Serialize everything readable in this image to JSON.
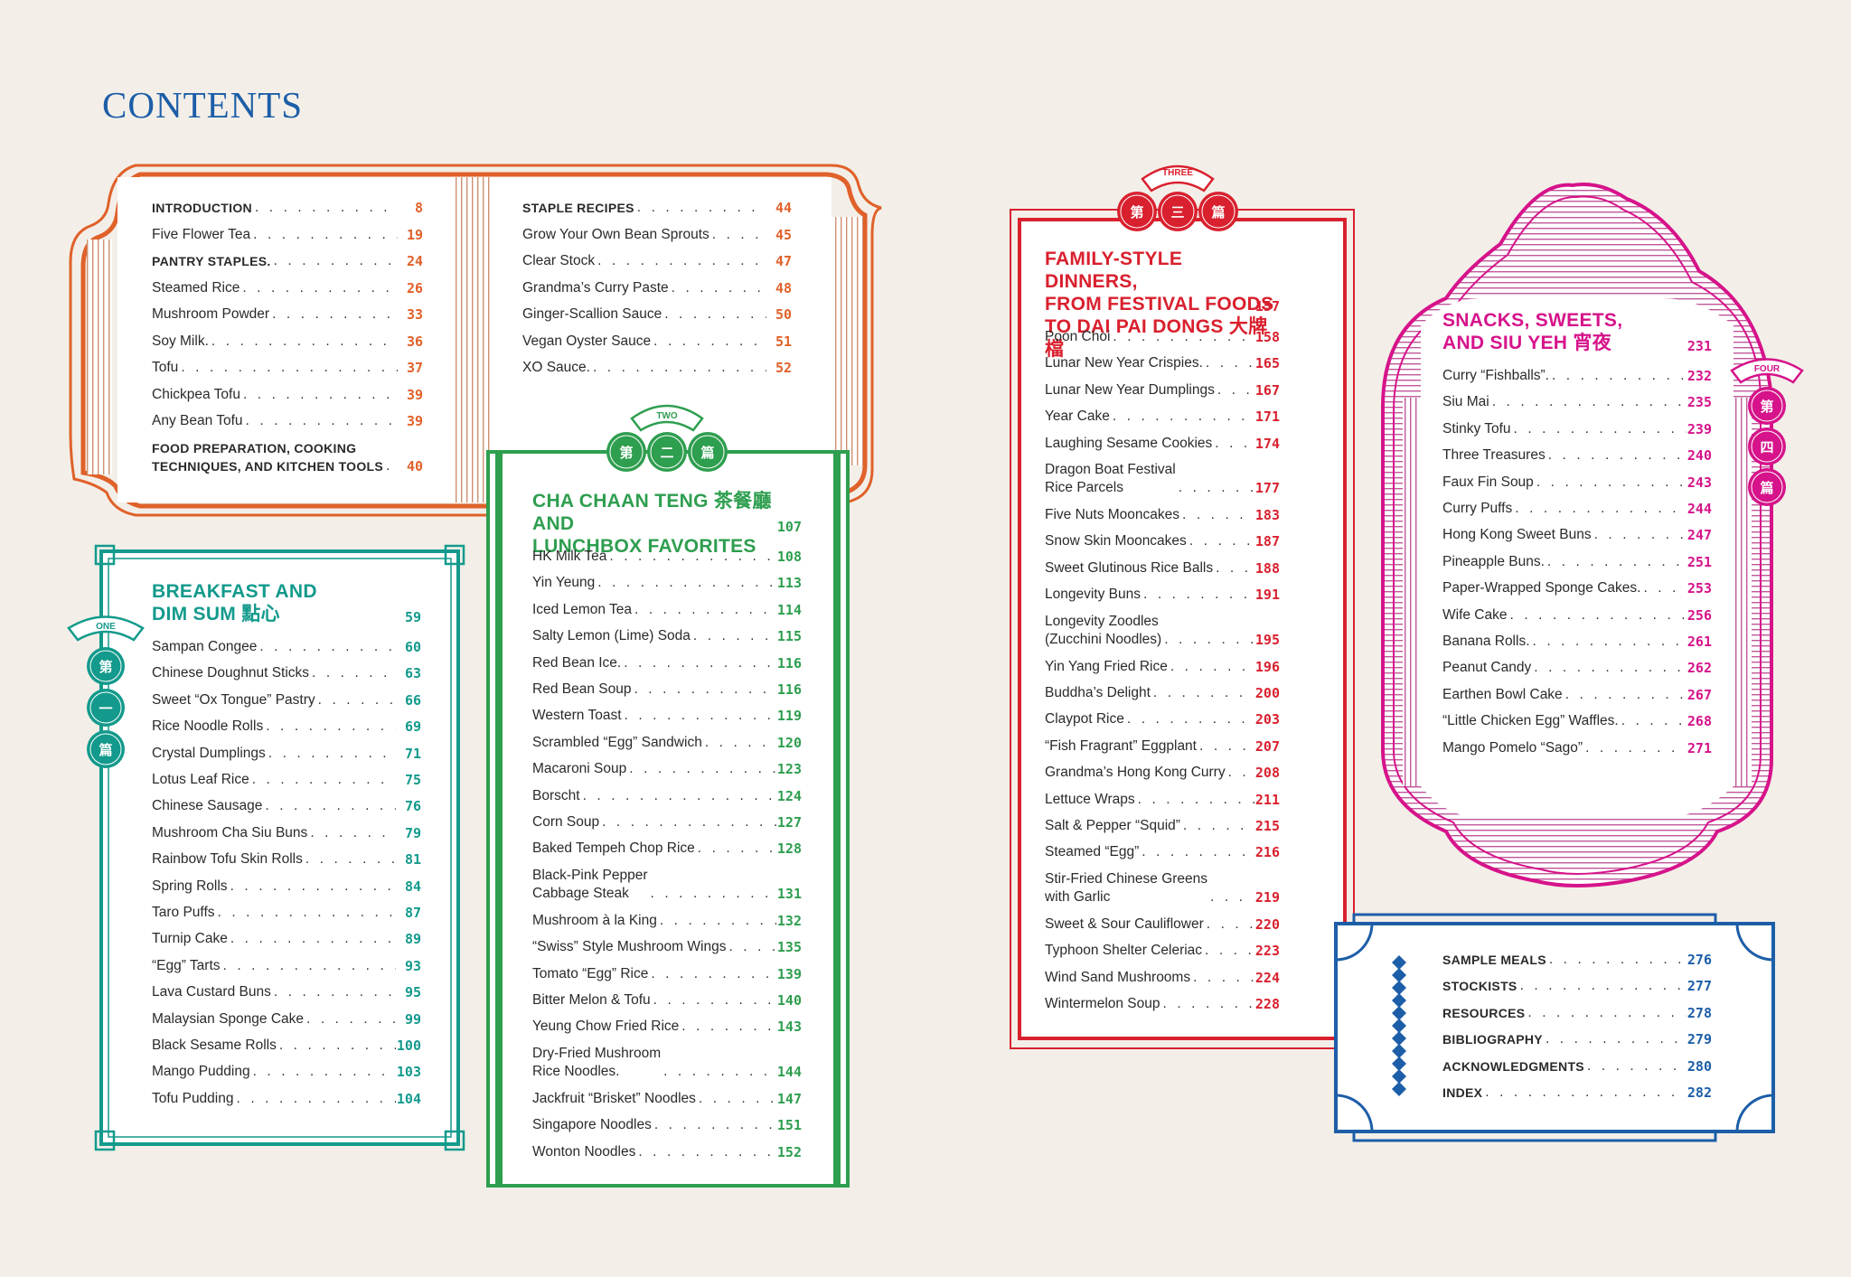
{
  "page_title": "CONTENTS",
  "colors": {
    "orange": "#e0612a",
    "teal": "#139a8c",
    "green": "#2e9e4f",
    "red": "#d9202e",
    "pink": "#d6138a",
    "blue": "#1d5ea8",
    "background": "#f3efe8"
  },
  "front_matter": {
    "left": [
      {
        "title": "INTRODUCTION",
        "page": "8",
        "caps": true
      },
      {
        "title": "Five Flower Tea",
        "page": "19"
      },
      {
        "title": "PANTRY STAPLES.",
        "page": "24",
        "caps": true
      },
      {
        "title": "Steamed Rice",
        "page": "26"
      },
      {
        "title": "Mushroom Powder",
        "page": "33"
      },
      {
        "title": "Soy Milk.",
        "page": "36"
      },
      {
        "title": "Tofu",
        "page": "37"
      },
      {
        "title": "Chickpea Tofu",
        "page": "39"
      },
      {
        "title": "Any Bean Tofu",
        "page": "39"
      },
      {
        "title": "FOOD PREPARATION, COOKING\nTECHNIQUES, AND KITCHEN TOOLS",
        "page": "40",
        "caps": true
      }
    ],
    "right": [
      {
        "title": "STAPLE RECIPES",
        "page": "44",
        "caps": true
      },
      {
        "title": "Grow Your Own Bean Sprouts",
        "page": "45"
      },
      {
        "title": "Clear Stock",
        "page": "47"
      },
      {
        "title": "Grandma’s Curry Paste",
        "page": "48"
      },
      {
        "title": "Ginger-Scallion Sauce",
        "page": "50"
      },
      {
        "title": "Vegan Oyster Sauce",
        "page": "51"
      },
      {
        "title": "XO Sauce.",
        "page": "52"
      }
    ]
  },
  "chapters": [
    {
      "number_label": "ONE",
      "chinese_badge": [
        "第",
        "一",
        "篇"
      ],
      "heading": "BREAKFAST AND\nDIM SUM 點心",
      "page": "59",
      "entries": [
        {
          "title": "Sampan Congee",
          "page": "60"
        },
        {
          "title": "Chinese Doughnut Sticks",
          "page": "63"
        },
        {
          "title": "Sweet “Ox Tongue” Pastry",
          "page": "66"
        },
        {
          "title": "Rice Noodle Rolls",
          "page": "69"
        },
        {
          "title": "Crystal Dumplings",
          "page": "71"
        },
        {
          "title": "Lotus Leaf Rice",
          "page": "75"
        },
        {
          "title": "Chinese Sausage",
          "page": "76"
        },
        {
          "title": "Mushroom Cha Siu Buns",
          "page": "79"
        },
        {
          "title": "Rainbow Tofu Skin Rolls",
          "page": "81"
        },
        {
          "title": "Spring Rolls",
          "page": "84"
        },
        {
          "title": "Taro Puffs",
          "page": "87"
        },
        {
          "title": "Turnip Cake",
          "page": "89"
        },
        {
          "title": "“Egg” Tarts",
          "page": "93"
        },
        {
          "title": "Lava Custard Buns",
          "page": "95"
        },
        {
          "title": "Malaysian Sponge Cake",
          "page": "99"
        },
        {
          "title": "Black Sesame Rolls",
          "page": "100"
        },
        {
          "title": "Mango Pudding",
          "page": "103"
        },
        {
          "title": "Tofu Pudding",
          "page": "104"
        }
      ]
    },
    {
      "number_label": "TWO",
      "chinese_badge": [
        "第",
        "二",
        "篇"
      ],
      "heading": "CHA CHAAN TENG 茶餐廳 AND\nLUNCHBOX FAVORITES",
      "page": "107",
      "entries": [
        {
          "title": "HK Milk Tea",
          "page": "108"
        },
        {
          "title": "Yin Yeung",
          "page": "113"
        },
        {
          "title": "Iced Lemon Tea",
          "page": "114"
        },
        {
          "title": "Salty Lemon (Lime) Soda",
          "page": "115"
        },
        {
          "title": "Red Bean Ice.",
          "page": "116"
        },
        {
          "title": "Red Bean Soup",
          "page": "116"
        },
        {
          "title": "Western Toast",
          "page": "119"
        },
        {
          "title": "Scrambled “Egg” Sandwich",
          "page": "120"
        },
        {
          "title": "Macaroni Soup",
          "page": "123"
        },
        {
          "title": "Borscht",
          "page": "124"
        },
        {
          "title": "Corn Soup",
          "page": "127"
        },
        {
          "title": "Baked Tempeh Chop Rice",
          "page": "128"
        },
        {
          "title": "Black-Pink Pepper\nCabbage Steak",
          "page": "131"
        },
        {
          "title": "Mushroom à la King",
          "page": "132"
        },
        {
          "title": "“Swiss” Style Mushroom Wings",
          "page": "135"
        },
        {
          "title": "Tomato “Egg” Rice",
          "page": "139"
        },
        {
          "title": "Bitter Melon & Tofu",
          "page": "140"
        },
        {
          "title": "Yeung Chow Fried Rice",
          "page": "143"
        },
        {
          "title": "Dry-Fried Mushroom\nRice Noodles.",
          "page": "144"
        },
        {
          "title": "Jackfruit “Brisket” Noodles",
          "page": "147"
        },
        {
          "title": "Singapore Noodles",
          "page": "151"
        },
        {
          "title": "Wonton Noodles",
          "page": "152"
        }
      ]
    },
    {
      "number_label": "THREE",
      "chinese_badge": [
        "第",
        "三",
        "篇"
      ],
      "heading": "FAMILY-STYLE DINNERS,\nFROM FESTIVAL FOODS\nTO DAI PAI DONGS 大牌檔",
      "page": "157",
      "entries": [
        {
          "title": "Poon Choi",
          "page": "158"
        },
        {
          "title": "Lunar New Year Crispies.",
          "page": "165"
        },
        {
          "title": "Lunar New Year Dumplings",
          "page": "167"
        },
        {
          "title": "Year Cake",
          "page": "171"
        },
        {
          "title": "Laughing Sesame Cookies",
          "page": "174"
        },
        {
          "title": "Dragon Boat Festival\nRice Parcels",
          "page": "177"
        },
        {
          "title": "Five Nuts Mooncakes",
          "page": "183"
        },
        {
          "title": "Snow Skin Mooncakes",
          "page": "187"
        },
        {
          "title": "Sweet Glutinous Rice Balls",
          "page": "188"
        },
        {
          "title": "Longevity Buns",
          "page": "191"
        },
        {
          "title": "Longevity Zoodles\n(Zucchini Noodles)",
          "page": "195"
        },
        {
          "title": "Yin Yang Fried Rice",
          "page": "196"
        },
        {
          "title": "Buddha’s Delight",
          "page": "200"
        },
        {
          "title": "Claypot Rice",
          "page": "203"
        },
        {
          "title": "“Fish Fragrant” Eggplant",
          "page": "207"
        },
        {
          "title": "Grandma’s Hong Kong Curry",
          "page": "208"
        },
        {
          "title": "Lettuce Wraps",
          "page": "211"
        },
        {
          "title": "Salt & Pepper “Squid”",
          "page": "215"
        },
        {
          "title": "Steamed “Egg”",
          "page": "216"
        },
        {
          "title": "Stir-Fried Chinese Greens\nwith Garlic",
          "page": "219"
        },
        {
          "title": "Sweet & Sour Cauliflower",
          "page": "220"
        },
        {
          "title": "Typhoon Shelter Celeriac",
          "page": "223"
        },
        {
          "title": "Wind Sand Mushrooms",
          "page": "224"
        },
        {
          "title": "Wintermelon Soup",
          "page": "228"
        }
      ]
    },
    {
      "number_label": "FOUR",
      "chinese_badge": [
        "第",
        "四",
        "篇"
      ],
      "heading": "SNACKS, SWEETS,\nAND SIU YEH 宵夜",
      "page": "231",
      "entries": [
        {
          "title": "Curry “Fishballs”.",
          "page": "232"
        },
        {
          "title": "Siu Mai",
          "page": "235"
        },
        {
          "title": "Stinky Tofu",
          "page": "239"
        },
        {
          "title": "Three Treasures",
          "page": "240"
        },
        {
          "title": "Faux Fin Soup",
          "page": "243"
        },
        {
          "title": "Curry Puffs",
          "page": "244"
        },
        {
          "title": "Hong Kong Sweet Buns",
          "page": "247"
        },
        {
          "title": "Pineapple Buns.",
          "page": "251"
        },
        {
          "title": "Paper-Wrapped Sponge Cakes.",
          "page": "253"
        },
        {
          "title": "Wife Cake",
          "page": "256"
        },
        {
          "title": "Banana Rolls.",
          "page": "261"
        },
        {
          "title": "Peanut Candy",
          "page": "262"
        },
        {
          "title": "Earthen Bowl Cake",
          "page": "267"
        },
        {
          "title": "“Little Chicken Egg” Waffles.",
          "page": "268"
        },
        {
          "title": "Mango Pomelo “Sago”",
          "page": "271"
        }
      ]
    }
  ],
  "back_matter": [
    {
      "title": "SAMPLE MEALS",
      "page": "276"
    },
    {
      "title": "STOCKISTS",
      "page": "277"
    },
    {
      "title": "RESOURCES",
      "page": "278"
    },
    {
      "title": "BIBLIOGRAPHY",
      "page": "279"
    },
    {
      "title": "ACKNOWLEDGMENTS",
      "page": "280"
    },
    {
      "title": "INDEX",
      "page": "282"
    }
  ]
}
